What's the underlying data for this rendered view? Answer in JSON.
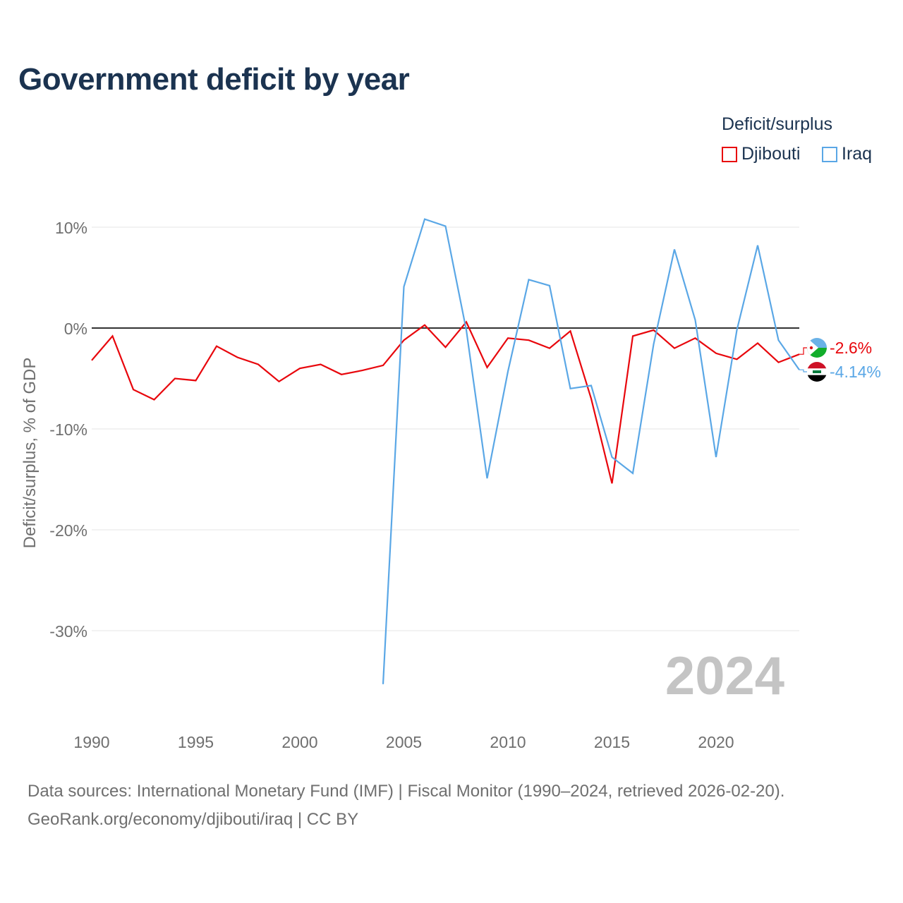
{
  "header": {
    "title": "Government deficit by year"
  },
  "legend": {
    "title": "Deficit/surplus",
    "items": [
      {
        "label": "Djibouti",
        "color": "#e8060c"
      },
      {
        "label": "Iraq",
        "color": "#5aa7e6"
      }
    ]
  },
  "footer": {
    "line1": "Data sources: International Monetary Fund (IMF) | Fiscal Monitor (1990–2024, retrieved 2026-02-20).",
    "line2": "GeoRank.org/economy/djibouti/iraq | CC BY"
  },
  "chart_data": {
    "type": "line",
    "title": "Government deficit by year",
    "xlabel": "",
    "ylabel": "Deficit/surplus, % of GDP",
    "xlim": [
      1990,
      2024
    ],
    "ylim": [
      -37,
      13
    ],
    "x_ticks": [
      1990,
      1995,
      2000,
      2005,
      2010,
      2015,
      2020
    ],
    "y_ticks": [
      10,
      0,
      -10,
      -20,
      -30
    ],
    "y_tick_labels": [
      "10%",
      "0%",
      "-10%",
      "-20%",
      "-30%"
    ],
    "grid": true,
    "zero_line": true,
    "legend_position": "top-right",
    "watermark_year": "2024",
    "series": [
      {
        "name": "Djibouti",
        "color": "#e8060c",
        "end_label": "-2.6%",
        "x": [
          1990,
          1991,
          1992,
          1993,
          1994,
          1995,
          1996,
          1997,
          1998,
          1999,
          2000,
          2001,
          2002,
          2003,
          2004,
          2005,
          2006,
          2007,
          2008,
          2009,
          2010,
          2011,
          2012,
          2013,
          2014,
          2015,
          2016,
          2017,
          2018,
          2019,
          2020,
          2021,
          2022,
          2023,
          2024
        ],
        "y": [
          -3.2,
          -0.8,
          -6.1,
          -7.1,
          -5.0,
          -5.2,
          -1.8,
          -2.9,
          -3.6,
          -5.3,
          -4.0,
          -3.6,
          -4.6,
          -4.2,
          -3.7,
          -1.2,
          0.3,
          -1.9,
          0.6,
          -3.9,
          -1.0,
          -1.2,
          -2.0,
          -0.3,
          -7.0,
          -15.4,
          -0.8,
          -0.2,
          -2.0,
          -1.0,
          -2.5,
          -3.1,
          -1.5,
          -3.4,
          -2.6
        ]
      },
      {
        "name": "Iraq",
        "color": "#5aa7e6",
        "end_label": "-4.14%",
        "x": [
          2004,
          2005,
          2006,
          2007,
          2008,
          2009,
          2010,
          2011,
          2012,
          2013,
          2014,
          2015,
          2016,
          2017,
          2018,
          2019,
          2020,
          2021,
          2022,
          2023,
          2024
        ],
        "y": [
          -35.3,
          4.1,
          10.8,
          10.1,
          -0.2,
          -14.9,
          -4.3,
          4.8,
          4.2,
          -6.0,
          -5.7,
          -12.8,
          -14.4,
          -1.6,
          7.8,
          0.8,
          -12.8,
          -0.2,
          8.2,
          -1.2,
          -4.14
        ]
      }
    ]
  }
}
